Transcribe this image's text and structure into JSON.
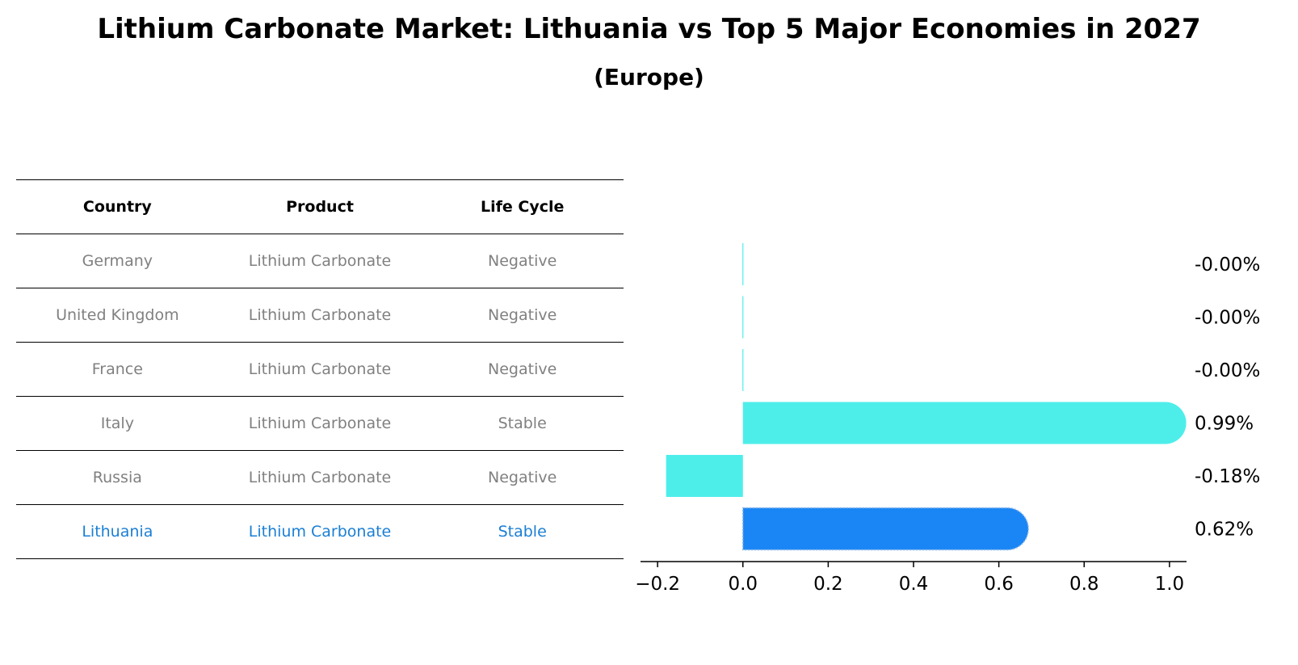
{
  "title": "Lithium Carbonate Market: Lithuania vs Top 5 Major Economies in 2027",
  "subtitle": "(Europe)",
  "table": {
    "headers": [
      "Country",
      "Product",
      "Life Cycle"
    ],
    "rows": [
      [
        "Germany",
        "Lithium Carbonate",
        "Negative"
      ],
      [
        "United Kingdom",
        "Lithium Carbonate",
        "Negative"
      ],
      [
        "France",
        "Lithium Carbonate",
        "Negative"
      ],
      [
        "Italy",
        "Lithium Carbonate",
        "Stable"
      ],
      [
        "Russia",
        "Lithium Carbonate",
        "Negative"
      ],
      [
        "Lithuania",
        "Lithium Carbonate",
        "Stable"
      ]
    ],
    "highlight_row": 5,
    "highlight_color": "#1a7fd4"
  },
  "chart_data": {
    "type": "bar",
    "orientation": "horizontal",
    "categories": [
      "Germany",
      "United Kingdom",
      "France",
      "Italy",
      "Russia",
      "Lithuania"
    ],
    "values": [
      -0.0,
      -0.0,
      -0.0,
      0.99,
      -0.18,
      0.62
    ],
    "value_labels": [
      "-0.00%",
      "-0.00%",
      "-0.00%",
      "0.99%",
      "-0.18%",
      "0.62%"
    ],
    "xlim": [
      -0.24,
      1.04
    ],
    "xticks": [
      -0.2,
      0.0,
      0.2,
      0.4,
      0.6,
      0.8,
      1.0
    ],
    "xtick_labels": [
      "−0.2",
      "0.0",
      "0.2",
      "0.4",
      "0.6",
      "0.8",
      "1.0"
    ],
    "colors": {
      "bar": "#4deeea",
      "highlight": "#1a85f5"
    },
    "grid": false
  }
}
